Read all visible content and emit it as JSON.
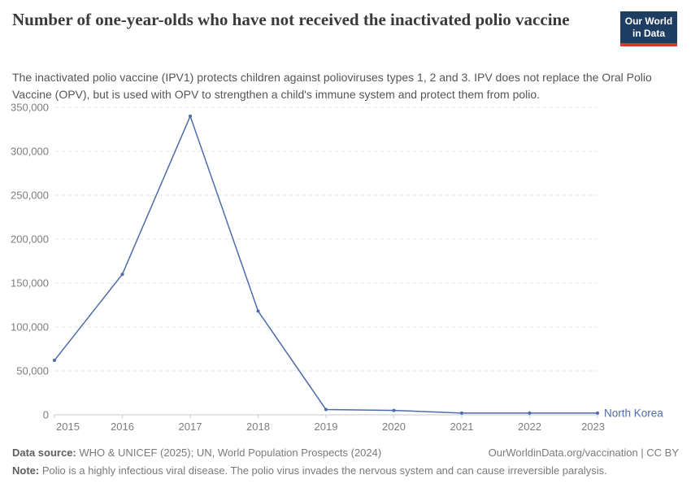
{
  "header": {
    "title": "Number of one-year-olds who have not received the inactivated polio vaccine",
    "subtitle": "The inactivated polio vaccine (IPV1) protects children against polioviruses types 1, 2 and 3. IPV does not replace the Oral Polio Vaccine (OPV), but is used with OPV to strengthen a child's immune system and protect them from polio.",
    "logo": {
      "line1": "Our World",
      "line2": "in Data"
    }
  },
  "chart_data": {
    "type": "line",
    "title": "Number of one-year-olds who have not received the inactivated polio vaccine",
    "x": [
      2015,
      2016,
      2017,
      2018,
      2019,
      2020,
      2021,
      2022,
      2023
    ],
    "xtick_labels": [
      "2015",
      "2016",
      "2017",
      "2018",
      "2019",
      "2020",
      "2021",
      "2022",
      "2023"
    ],
    "series": [
      {
        "name": "North Korea",
        "color": "#4c6ba9",
        "values": [
          62000,
          160000,
          340000,
          118000,
          6000,
          5000,
          2000,
          2000,
          2000
        ]
      }
    ],
    "xlabel": "",
    "ylabel": "",
    "ylim": [
      0,
      350000
    ],
    "yticks": [
      0,
      50000,
      100000,
      150000,
      200000,
      250000,
      300000,
      350000
    ],
    "ytick_labels": [
      "0",
      "50,000",
      "100,000",
      "150,000",
      "200,000",
      "250,000",
      "300,000",
      "350,000"
    ],
    "grid": "horizontal-dashed",
    "legend": "line-end-label"
  },
  "colors": {
    "line": "#4c6ba9",
    "grid": "#e4e4e4",
    "axis": "#c9c9c9",
    "tick_text": "#7d7d7d",
    "title_text": "#3a3a3a",
    "logo_bg": "#1d3d63",
    "logo_red": "#d8352c"
  },
  "footer": {
    "datasource_label": "Data source:",
    "datasource_text": " WHO & UNICEF (2025); UN, World Population Prospects (2024)",
    "credit": "OurWorldinData.org/vaccination | CC BY",
    "note_label": "Note:",
    "note_text": " Polio is a highly infectious viral disease. The polio virus invades the nervous system and can cause irreversible paralysis."
  }
}
